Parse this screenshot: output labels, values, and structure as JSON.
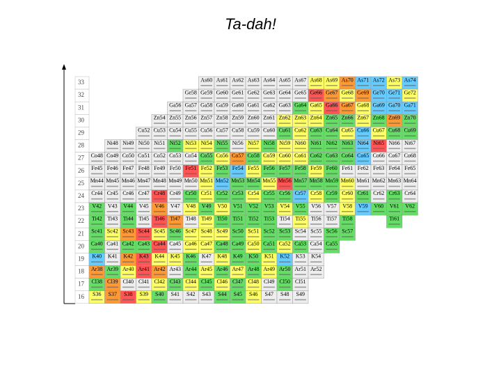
{
  "title": "Ta-dah!",
  "rows": [
    {
      "z": "33",
      "cells": [
        null,
        null,
        null,
        null,
        null,
        null,
        null,
        "As60",
        "As61",
        "As62",
        "As63",
        "As64",
        "As65",
        "As67",
        "As68",
        "As69",
        "As70",
        "As71",
        "As72",
        "As73",
        "As74"
      ],
      "colors": [
        null,
        null,
        null,
        null,
        null,
        null,
        null,
        "#eee",
        "#eee",
        "#eee",
        "#eee",
        "#eee",
        "#eee",
        "#eee",
        "#ff6",
        "#ff6",
        "#f93",
        "#6cf",
        "#6cf",
        "#ff6",
        "#6cf"
      ]
    },
    {
      "z": "32",
      "cells": [
        null,
        null,
        null,
        null,
        null,
        null,
        "Ge58",
        "Ge59",
        "Ge60",
        "Ge61",
        "Ge62",
        "Ge63",
        "Ge64",
        "Ge65",
        "Ge66",
        "Ge67",
        "Ge68",
        "Ge69",
        "Ge70",
        "Ge71",
        "Ge72"
      ],
      "colors": [
        null,
        null,
        null,
        null,
        null,
        null,
        "#eee",
        "#eee",
        "#eee",
        "#eee",
        "#eee",
        "#eee",
        "#eee",
        "#eee",
        "#f55",
        "#f93",
        "#ff6",
        "#f93",
        "#6cf",
        "#6cf",
        "#ff6"
      ]
    },
    {
      "z": "31",
      "cells": [
        null,
        null,
        null,
        null,
        null,
        "Ga56",
        "Ga57",
        "Ga58",
        "Ga59",
        "Ga60",
        "Ga61",
        "Ga62",
        "Ga63",
        "Ga64",
        "Ga65",
        "Ga66",
        "Ga67",
        "Ga68",
        "Ga69",
        "Ga70",
        "Ga71"
      ],
      "colors": [
        null,
        null,
        null,
        null,
        null,
        "#eee",
        "#eee",
        "#eee",
        "#eee",
        "#eee",
        "#eee",
        "#eee",
        "#eee",
        "#6d6",
        "#ff6",
        "#f55",
        "#f93",
        "#ff6",
        "#6cf",
        "#6cf",
        "#6cf"
      ]
    },
    {
      "z": "30",
      "cells": [
        null,
        null,
        null,
        null,
        "Zn54",
        "Zn55",
        "Zn56",
        "Zn57",
        "Zn58",
        "Zn59",
        "Zn60",
        "Zn61",
        "Zn62",
        "Zn63",
        "Zn64",
        "Zn65",
        "Zn66",
        "Zn67",
        "Zn68",
        "Zn69",
        "Zn70"
      ],
      "colors": [
        null,
        null,
        null,
        null,
        "#eee",
        "#eee",
        "#eee",
        "#eee",
        "#eee",
        "#eee",
        "#eee",
        "#eee",
        "#ff6",
        "#ff6",
        "#ff6",
        "#6d6",
        "#6d6",
        "#ff6",
        "#6d6",
        "#f93",
        "#6d6"
      ]
    },
    {
      "z": "29",
      "cells": [
        null,
        null,
        null,
        "Cu52",
        "Cu53",
        "Cu54",
        "Cu55",
        "Cu56",
        "Cu57",
        "Cu58",
        "Cu59",
        "Cu60",
        "Cu61",
        "Cu62",
        "Cu63",
        "Cu64",
        "Cu65",
        "Cu66",
        "Cu67",
        "Cu68",
        "Cu69"
      ],
      "colors": [
        null,
        null,
        null,
        "#eee",
        "#eee",
        "#eee",
        "#eee",
        "#eee",
        "#eee",
        "#eee",
        "#eee",
        "#eee",
        "#6d6",
        "#ff6",
        "#6d6",
        "#6d6",
        "#ff6",
        "#6cf",
        "#ff6",
        "#6d6",
        "#6d6"
      ]
    },
    {
      "z": "28",
      "cells": [
        null,
        "Ni48",
        "Ni49",
        "Ni50",
        "Ni51",
        "Ni52",
        "Ni53",
        "Ni54",
        "Ni55",
        "Ni56",
        "Ni57",
        "Ni58",
        "Ni59",
        "Ni60",
        "Ni61",
        "Ni62",
        "Ni63",
        "Ni64",
        "Ni65",
        "Ni66",
        "Ni67"
      ],
      "colors": [
        null,
        "#eee",
        "#eee",
        "#eee",
        "#eee",
        "#6d6",
        "#ff6",
        "#ff6",
        "#6d6",
        "#eee",
        "#ff6",
        "#6d6",
        "#ff6",
        "#ff6",
        "#6d6",
        "#6d6",
        "#6d6",
        "#6cf",
        "#f55",
        "#eee",
        "#eee"
      ]
    },
    {
      "z": "27",
      "cells": [
        "Co48",
        "Co49",
        "Co50",
        "Co51",
        "Co52",
        "Co53",
        "Co54",
        "Co55",
        "Co56",
        "Co57",
        "Co58",
        "Co59",
        "Co60",
        "Co61",
        "Co62",
        "Co63",
        "Co64",
        "Co65",
        "Co66",
        "Co67",
        "Co68"
      ],
      "colors": [
        "#eee",
        "#eee",
        "#eee",
        "#eee",
        "#eee",
        "#eee",
        "#eee",
        "#6d6",
        "#ff6",
        "#f93",
        "#6d6",
        "#ff6",
        "#ff6",
        "#ff6",
        "#6d6",
        "#6d6",
        "#6d6",
        "#6cf",
        "#eee",
        "#eee",
        "#eee"
      ]
    },
    {
      "z": "26",
      "cells": [
        "Fe45",
        "Fe46",
        "Fe47",
        "Fe48",
        "Fe49",
        "Fe50",
        "Fe51",
        "Fe52",
        "Fe53",
        "Fe54",
        "Fe55",
        "Fe56",
        "Fe57",
        "Fe58",
        "Fe59",
        "Fe60",
        "Fe61",
        "Fe62",
        "Fe63",
        "Fe64",
        "Fe65"
      ],
      "colors": [
        "#eee",
        "#eee",
        "#eee",
        "#eee",
        "#eee",
        "#eee",
        "#f55",
        "#ff6",
        "#6d6",
        "#6cf",
        "#ff6",
        "#6d6",
        "#6d6",
        "#6d6",
        "#ff6",
        "#6d6",
        "#eee",
        "#eee",
        "#eee",
        "#eee",
        "#eee"
      ]
    },
    {
      "z": "25",
      "cells": [
        "Mn44",
        "Mn45",
        "Mn46",
        "Mn47",
        "Mn48",
        "Mn49",
        "Mn50",
        "Mn51",
        "Mn52",
        "Mn53",
        "Mn54",
        "Mn55",
        "Mn56",
        "Mn57",
        "Mn58",
        "Mn59",
        "Mn60",
        "Mn61",
        "Mn62",
        "Mn63",
        "Mn64"
      ],
      "colors": [
        "#eee",
        "#eee",
        "#eee",
        "#eee",
        "#eee",
        "#eee",
        "#eee",
        "#ff6",
        "#6cf",
        "#6d6",
        "#6d6",
        "#ff6",
        "#f55",
        "#6d6",
        "#6d6",
        "#6d6",
        "#ff6",
        "#eee",
        "#eee",
        "#eee",
        "#eee"
      ]
    },
    {
      "z": "24",
      "cells": [
        "Cr44",
        "Cr45",
        "Cr46",
        "Cr47",
        "Cr48",
        "Cr49",
        "Cr50",
        "Cr51",
        "Cr52",
        "Cr53",
        "Cr54",
        "Cr55",
        "Cr56",
        "Cr57",
        "Cr58",
        "Cr59",
        "Cr60",
        "Cr61",
        "Cr62",
        "Cr63",
        "Cr64"
      ],
      "colors": [
        "#eee",
        "#eee",
        "#eee",
        "#eee",
        "#f55",
        "#eee",
        "#6d6",
        "#ff6",
        "#6d6",
        "#6d6",
        "#ff6",
        "#6d6",
        "#6d6",
        "#6cf",
        "#ff6",
        "#6d6",
        "#ff6",
        "#6d6",
        "#eee",
        "#6d6",
        "#eee"
      ]
    },
    {
      "z": "23",
      "cells": [
        "V42",
        "V43",
        "V44",
        "V45",
        "V46",
        "V47",
        "V48",
        "V49",
        "V50",
        "V51",
        "V52",
        "V53",
        "V54",
        "V55",
        "V56",
        "V57",
        "V58",
        "V59",
        "V60",
        "V61",
        "V62"
      ],
      "colors": [
        "#6d6",
        "#eee",
        "#6d6",
        "#eee",
        "#f93",
        "#eee",
        "#ff6",
        "#6d6",
        "#ff6",
        "#6d6",
        "#6d6",
        "#6d6",
        "#ff6",
        "#6d6",
        "#eee",
        "#eee",
        "#ff6",
        "#6cf",
        "#6d6",
        "#6d6",
        "#6d6"
      ]
    },
    {
      "z": "22",
      "cells": [
        "Ti42",
        "Ti43",
        "Ti44",
        "Ti45",
        "Ti46",
        "Ti47",
        "Ti48",
        "Ti49",
        "Ti50",
        "Ti51",
        "Ti52",
        "Ti53",
        "Ti54",
        "Ti55",
        "Ti56",
        "Ti57",
        "Ti58",
        null,
        null,
        "Ti61"
      ],
      "colors": [
        "#6d6",
        "#eee",
        "#6d6",
        "#eee",
        "#f55",
        "#f93",
        "#eee",
        "#ff6",
        "#6d6",
        "#6d6",
        "#6d6",
        "#6d6",
        "#eee",
        "#ff6",
        "#eee",
        "#eee",
        "#6d6",
        null,
        null,
        "#6d6"
      ]
    },
    {
      "z": "21",
      "cells": [
        "Sc41",
        "Sc42",
        "Sc43",
        "Sc44",
        "Sc45",
        "Sc46",
        "Sc47",
        "Sc48",
        "Sc49",
        "Sc50",
        "Sc51",
        "Sc52",
        "Sc53",
        "Sc54",
        "Sc55",
        "Sc56",
        "Sc57"
      ],
      "colors": [
        "#6d6",
        "#ff6",
        "#f93",
        "#f55",
        "#ff6",
        "#6d6",
        "#ff6",
        "#ff6",
        "#ff6",
        "#6d6",
        "#ff6",
        "#6d6",
        "#6d6",
        "#eee",
        "#eee",
        "#6d6",
        "#6d6"
      ]
    },
    {
      "z": "20",
      "cells": [
        "Ca40",
        "Ca41",
        "Ca42",
        "Ca43",
        "Ca44",
        "Ca45",
        "Ca46",
        "Ca47",
        "Ca48",
        "Ca49",
        "Ca50",
        "Ca51",
        "Ca52",
        "Ca53",
        "Ca54",
        "Ca55"
      ],
      "colors": [
        "#6d6",
        "#eee",
        "#6d6",
        "#6d6",
        "#f55",
        "#eee",
        "#ff6",
        "#ff6",
        "#6d6",
        "#6d6",
        "#ff6",
        "#6d6",
        "#ff6",
        "#6d6",
        "#eee",
        "#6d6"
      ]
    },
    {
      "z": "19",
      "cells": [
        "K40",
        "K41",
        "K42",
        "K43",
        "K44",
        "K45",
        "K46",
        "K47",
        "K48",
        "K49",
        "K50",
        "K51",
        "K52",
        "K53",
        "K54"
      ],
      "colors": [
        "#6cf",
        "#eee",
        "#f93",
        "#f55",
        "#ff6",
        "#ff6",
        "#6d6",
        "#eee",
        "#ff6",
        "#6d6",
        "#6d6",
        "#ff6",
        "#6cf",
        "#eee",
        "#eee"
      ]
    },
    {
      "z": "18",
      "cells": [
        "Ar38",
        "Ar39",
        "Ar40",
        "Ar41",
        "Ar42",
        "Ar43",
        "Ar44",
        "Ar45",
        "Ar46",
        "Ar47",
        "Ar48",
        "Ar49",
        "Ar50",
        "Ar51",
        "Ar52"
      ],
      "colors": [
        "#f93",
        "#6d6",
        "#ff6",
        "#f55",
        "#f93",
        "#eee",
        "#6d6",
        "#ff6",
        "#6d6",
        "#ff6",
        "#6d6",
        "#ff6",
        "#6d6",
        "#eee",
        "#eee"
      ]
    },
    {
      "z": "17",
      "cells": [
        "Cl38",
        "Cl39",
        "Cl40",
        "Cl41",
        "Cl42",
        "Cl43",
        "Cl44",
        "Cl45",
        "Cl46",
        "Cl47",
        "Cl48",
        "Cl49",
        "Cl50",
        "Cl51"
      ],
      "colors": [
        "#6d6",
        "#f93",
        "#eee",
        "#eee",
        "#ff6",
        "#6d6",
        "#ff6",
        "#6d6",
        "#ff6",
        "#6d6",
        "#ff6",
        "#eee",
        "#6d6",
        "#eee"
      ]
    },
    {
      "z": "16",
      "cells": [
        "S36",
        "S37",
        "S38",
        "S39",
        "S40",
        "S41",
        "S42",
        "S43",
        "S44",
        "S45",
        "S46",
        "S47",
        "S48",
        "S49"
      ],
      "colors": [
        "#ff6",
        "#f93",
        "#f55",
        "#ff6",
        "#6d6",
        "#eee",
        "#eee",
        "#eee",
        "#6d6",
        "#6d6",
        "#ff6",
        "#eee",
        "#eee",
        "#eee"
      ]
    }
  ]
}
